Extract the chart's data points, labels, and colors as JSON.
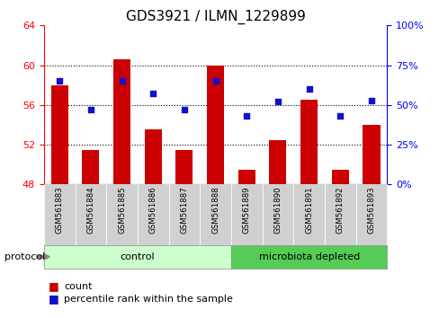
{
  "title": "GDS3921 / ILMN_1229899",
  "samples": [
    "GSM561883",
    "GSM561884",
    "GSM561885",
    "GSM561886",
    "GSM561887",
    "GSM561888",
    "GSM561889",
    "GSM561890",
    "GSM561891",
    "GSM561892",
    "GSM561893"
  ],
  "counts": [
    58.0,
    51.5,
    60.6,
    53.5,
    51.5,
    60.0,
    49.5,
    52.5,
    56.5,
    49.5,
    54.0
  ],
  "percentile_ranks": [
    65,
    47,
    65,
    57,
    47,
    65,
    43,
    52,
    60,
    43,
    53
  ],
  "ylim_left": [
    48,
    64
  ],
  "ylim_right": [
    0,
    100
  ],
  "yticks_left": [
    48,
    52,
    56,
    60,
    64
  ],
  "yticks_right": [
    0,
    25,
    50,
    75,
    100
  ],
  "bar_color": "#cc0000",
  "dot_color": "#1111cc",
  "bar_width": 0.55,
  "n_control": 6,
  "n_depleted": 5,
  "control_label": "control",
  "depleted_label": "microbiota depleted",
  "protocol_label": "protocol",
  "legend_count_label": "count",
  "legend_pct_label": "percentile rank within the sample",
  "control_color": "#ccffcc",
  "depleted_color": "#55cc55",
  "gray_bg": "#d0d0d0",
  "bg_color": "#ffffff",
  "grid_dotted_ticks": [
    52,
    56,
    60
  ],
  "title_fontsize": 11,
  "tick_fontsize": 8,
  "label_fontsize": 8
}
